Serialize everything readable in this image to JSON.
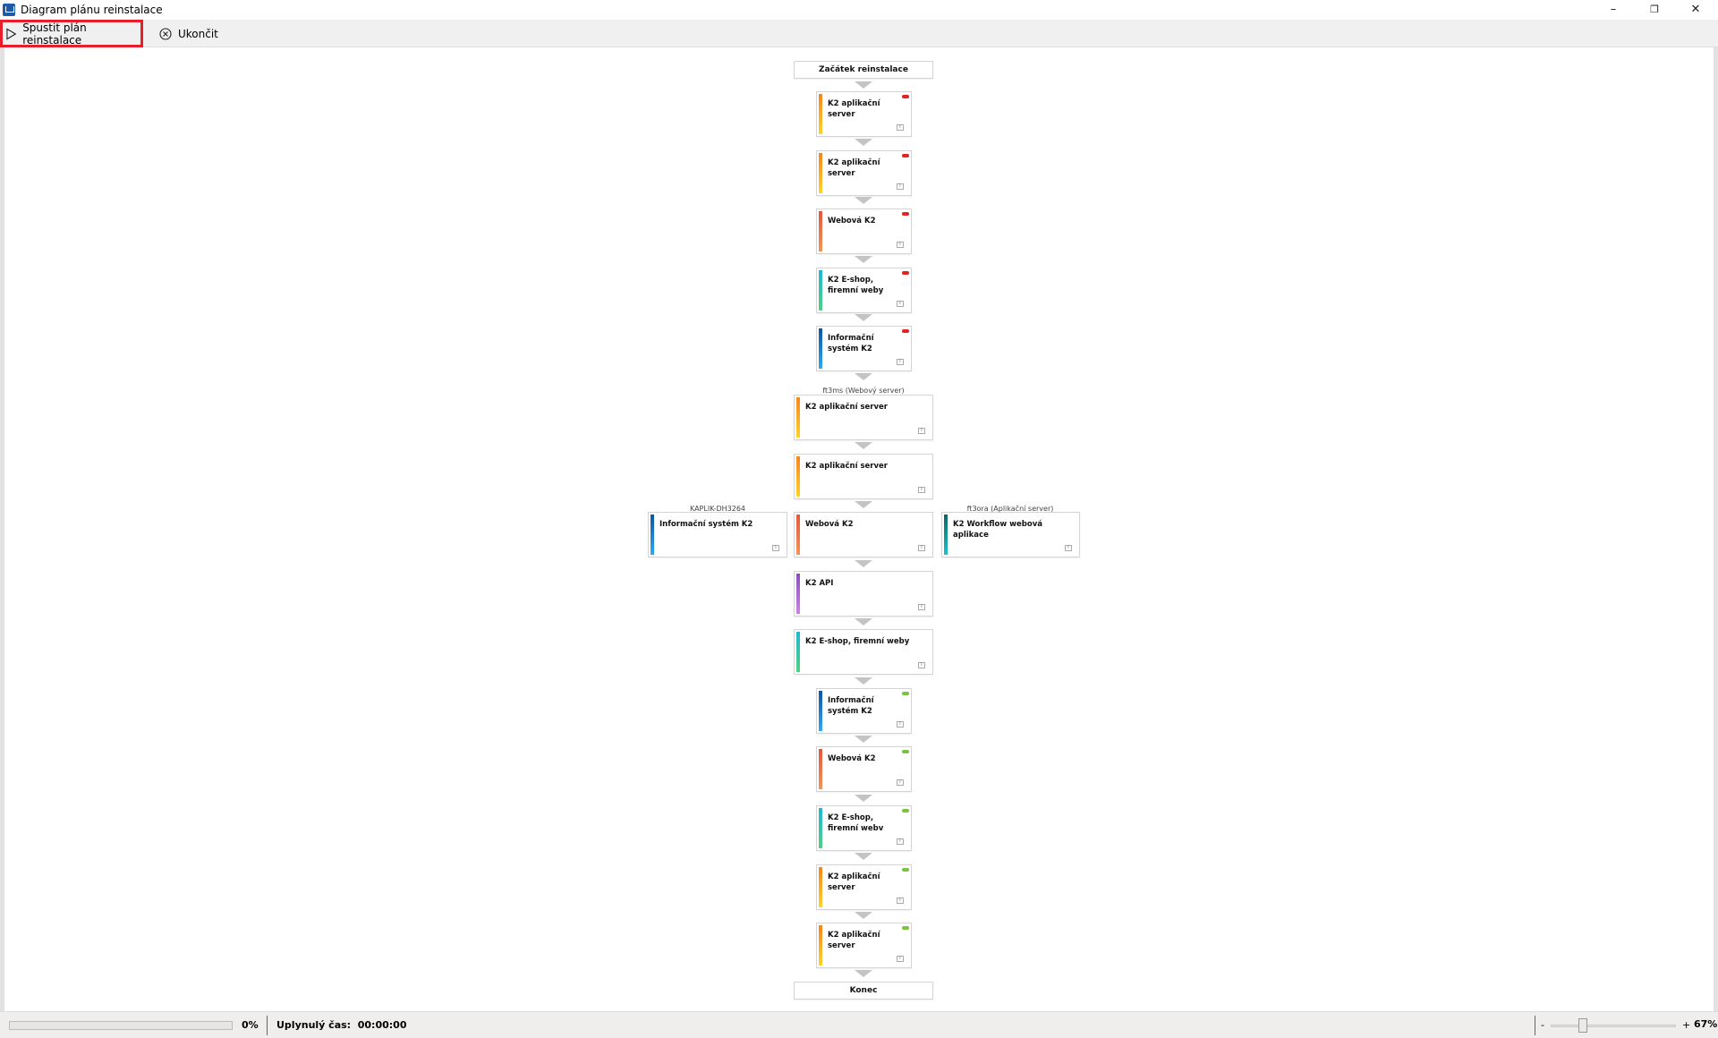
{
  "window": {
    "title": "Diagram plánu reinstalace",
    "minimize": "–",
    "restore": "❐",
    "close": "✕"
  },
  "toolbar": {
    "run_label": "Spustit plán reinstalace",
    "exit_label": "Ukončit"
  },
  "colors": {
    "orange": [
      "#f7851e",
      "#fdd32a"
    ],
    "red": [
      "#e4573c",
      "#f39456"
    ],
    "teal": [
      "#1fb8d6",
      "#52cf7f"
    ],
    "blue": [
      "#0b56a4",
      "#30a8f2"
    ],
    "purple": [
      "#8a4fc2",
      "#cf80e4"
    ],
    "darkteal": [
      "#0b6565",
      "#18c4cc"
    ],
    "status_red": "#e52222",
    "status_green": "#7cc242",
    "highlight": "#e81e2a"
  },
  "diagram": {
    "start": "Začátek reinstalace",
    "end": "Konec",
    "groups": [
      "ft3ms (Webový server)",
      "KAPLIK-DH3264",
      "ft3ora (Aplikační server)"
    ],
    "nodes": [
      {
        "title": "K2 aplikační server",
        "color": "orange",
        "status": "red"
      },
      {
        "title": "K2 aplikační server",
        "color": "orange",
        "status": "red"
      },
      {
        "title": "Webová K2",
        "color": "red",
        "status": "red"
      },
      {
        "title": "K2 E-shop, firemní weby",
        "color": "teal",
        "status": "red"
      },
      {
        "title": "Informační systém K2",
        "color": "blue",
        "status": "red"
      },
      {
        "title": "K2 aplikační server",
        "color": "orange",
        "status": null
      },
      {
        "title": "K2 aplikační server",
        "color": "orange",
        "status": null
      },
      {
        "title": "Informační systém K2",
        "color": "blue",
        "status": null
      },
      {
        "title": "Webová K2",
        "color": "red",
        "status": null
      },
      {
        "title": "K2 Workflow webová aplikace",
        "color": "darkteal",
        "status": null
      },
      {
        "title": "K2 API",
        "color": "purple",
        "status": null
      },
      {
        "title": "K2 E-shop, firemní weby",
        "color": "teal",
        "status": null
      },
      {
        "title": "Informační systém K2",
        "color": "blue",
        "status": "green"
      },
      {
        "title": "Webová K2",
        "color": "red",
        "status": "green"
      },
      {
        "title": "K2 E-shop, firemní webv",
        "color": "teal",
        "status": "green"
      },
      {
        "title": "K2 aplikační server",
        "color": "orange",
        "status": "green"
      },
      {
        "title": "K2 aplikační server",
        "color": "orange",
        "status": "green"
      }
    ],
    "info_glyph": "i"
  },
  "statusbar": {
    "progress_percent": 0,
    "progress_label": "0%",
    "elapsed_label": "Uplynulý čas:",
    "elapsed_value": "00:00:00",
    "zoom_minus": "-",
    "zoom_plus": "+",
    "zoom_label": "67%",
    "zoom_value": 67
  }
}
